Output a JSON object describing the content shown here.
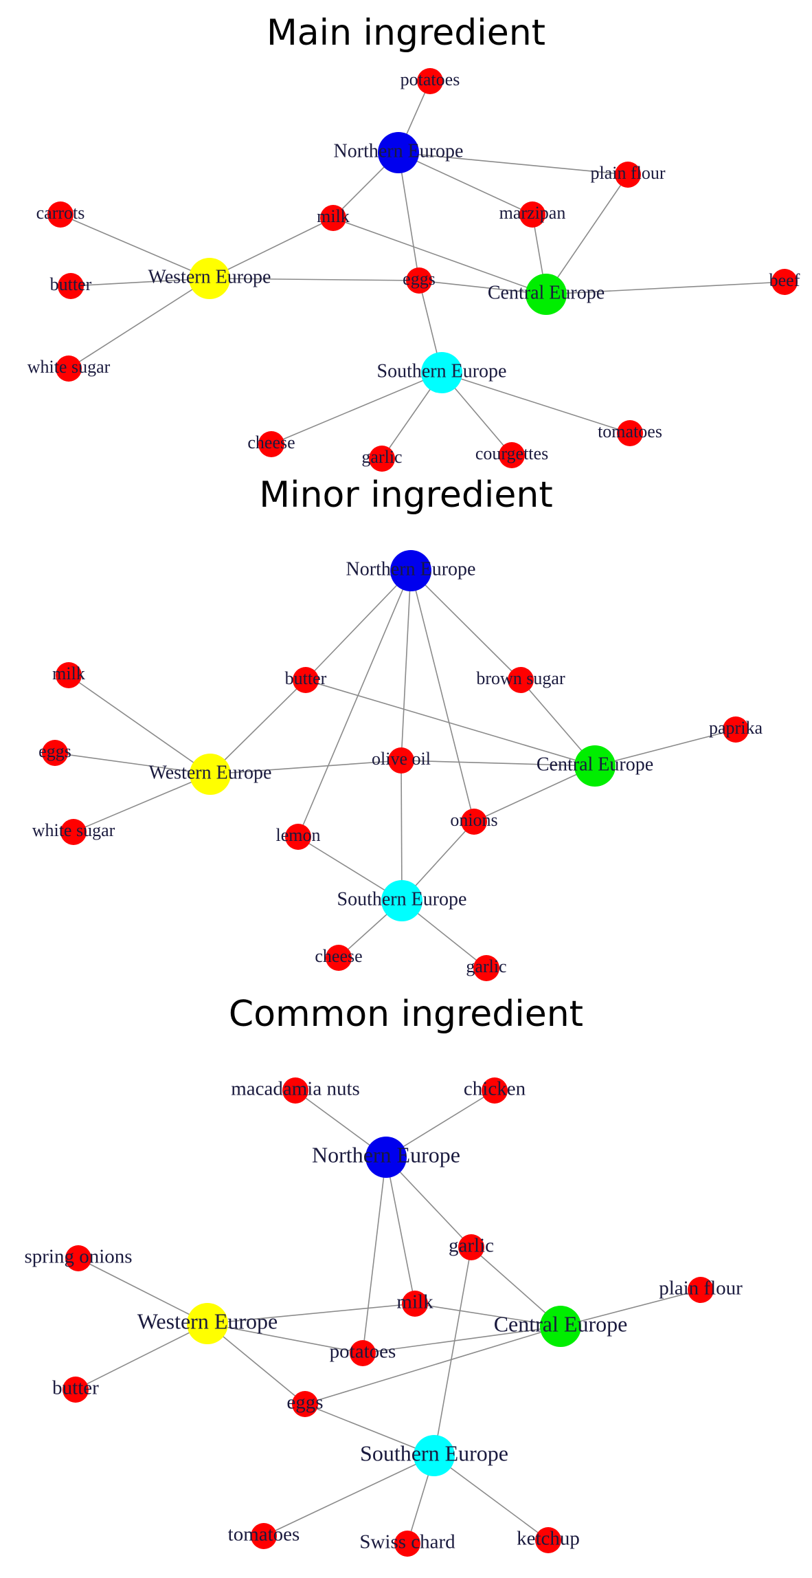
{
  "colors": {
    "Northern Europe": "#0000ee",
    "Western Europe": "#ffff00",
    "Central Europe": "#00ee00",
    "Southern Europe": "#00ffff",
    "ingredient": "#ff0000"
  },
  "panels": [
    {
      "title": "Main ingredient",
      "regions": [
        "Northern Europe",
        "Western Europe",
        "Central Europe",
        "Southern Europe"
      ],
      "ingredients": [
        "potatoes",
        "plain flour",
        "marzipan",
        "milk",
        "carrots",
        "butter",
        "white sugar",
        "eggs",
        "beef",
        "cheese",
        "garlic",
        "courgettes",
        "tomatoes"
      ],
      "edges": [
        [
          "Northern Europe",
          "potatoes"
        ],
        [
          "Northern Europe",
          "plain flour"
        ],
        [
          "Northern Europe",
          "marzipan"
        ],
        [
          "Northern Europe",
          "milk"
        ],
        [
          "Northern Europe",
          "eggs"
        ],
        [
          "Western Europe",
          "carrots"
        ],
        [
          "Western Europe",
          "butter"
        ],
        [
          "Western Europe",
          "white sugar"
        ],
        [
          "Western Europe",
          "milk"
        ],
        [
          "Western Europe",
          "eggs"
        ],
        [
          "Central Europe",
          "milk"
        ],
        [
          "Central Europe",
          "eggs"
        ],
        [
          "Central Europe",
          "marzipan"
        ],
        [
          "Central Europe",
          "plain flour"
        ],
        [
          "Central Europe",
          "beef"
        ],
        [
          "Southern Europe",
          "eggs"
        ],
        [
          "Southern Europe",
          "cheese"
        ],
        [
          "Southern Europe",
          "garlic"
        ],
        [
          "Southern Europe",
          "courgettes"
        ],
        [
          "Southern Europe",
          "tomatoes"
        ]
      ]
    },
    {
      "title": "Minor ingredient",
      "regions": [
        "Northern Europe",
        "Western Europe",
        "Central Europe",
        "Southern Europe"
      ],
      "ingredients": [
        "butter",
        "brown sugar",
        "milk",
        "eggs",
        "white sugar",
        "olive oil",
        "paprika",
        "lemon",
        "onions",
        "cheese",
        "garlic"
      ],
      "edges": [
        [
          "Northern Europe",
          "butter"
        ],
        [
          "Northern Europe",
          "brown sugar"
        ],
        [
          "Northern Europe",
          "olive oil"
        ],
        [
          "Northern Europe",
          "lemon"
        ],
        [
          "Northern Europe",
          "onions"
        ],
        [
          "Western Europe",
          "milk"
        ],
        [
          "Western Europe",
          "eggs"
        ],
        [
          "Western Europe",
          "white sugar"
        ],
        [
          "Western Europe",
          "butter"
        ],
        [
          "Western Europe",
          "olive oil"
        ],
        [
          "Central Europe",
          "butter"
        ],
        [
          "Central Europe",
          "brown sugar"
        ],
        [
          "Central Europe",
          "olive oil"
        ],
        [
          "Central Europe",
          "paprika"
        ],
        [
          "Central Europe",
          "onions"
        ],
        [
          "Southern Europe",
          "olive oil"
        ],
        [
          "Southern Europe",
          "lemon"
        ],
        [
          "Southern Europe",
          "onions"
        ],
        [
          "Southern Europe",
          "cheese"
        ],
        [
          "Southern Europe",
          "garlic"
        ]
      ]
    },
    {
      "title": "Common ingredient",
      "regions": [
        "Northern Europe",
        "Western Europe",
        "Central Europe",
        "Southern Europe"
      ],
      "ingredients": [
        "macadamia nuts",
        "chicken",
        "spring onions",
        "garlic",
        "plain flour",
        "milk",
        "potatoes",
        "butter",
        "eggs",
        "tomatoes",
        "Swiss chard",
        "ketchup"
      ],
      "edges": [
        [
          "Northern Europe",
          "macadamia nuts"
        ],
        [
          "Northern Europe",
          "chicken"
        ],
        [
          "Northern Europe",
          "garlic"
        ],
        [
          "Northern Europe",
          "milk"
        ],
        [
          "Northern Europe",
          "potatoes"
        ],
        [
          "Western Europe",
          "spring onions"
        ],
        [
          "Western Europe",
          "butter"
        ],
        [
          "Western Europe",
          "milk"
        ],
        [
          "Western Europe",
          "potatoes"
        ],
        [
          "Western Europe",
          "eggs"
        ],
        [
          "Central Europe",
          "garlic"
        ],
        [
          "Central Europe",
          "milk"
        ],
        [
          "Central Europe",
          "potatoes"
        ],
        [
          "Central Europe",
          "eggs"
        ],
        [
          "Central Europe",
          "plain flour"
        ],
        [
          "Southern Europe",
          "eggs"
        ],
        [
          "Southern Europe",
          "garlic"
        ],
        [
          "Southern Europe",
          "tomatoes"
        ],
        [
          "Southern Europe",
          "Swiss chard"
        ],
        [
          "Southern Europe",
          "ketchup"
        ]
      ]
    }
  ]
}
